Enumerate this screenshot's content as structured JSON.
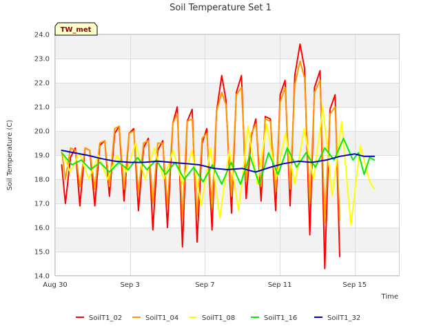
{
  "chart_data": {
    "type": "line",
    "title": "Soil Temperature Set 1",
    "xlabel": "Time",
    "ylabel": "Soil Temperature (C)",
    "badge": "TW_met",
    "x_start": "Aug 30",
    "x_unit": "days",
    "xlim": [
      0,
      18.4
    ],
    "ylim": [
      14.0,
      24.0
    ],
    "yticks": [
      "14.0",
      "15.0",
      "16.0",
      "17.0",
      "18.0",
      "19.0",
      "20.0",
      "21.0",
      "22.0",
      "23.0",
      "24.0"
    ],
    "xticks": [
      {
        "label": "Aug 30",
        "value": 0
      },
      {
        "label": "Sep 3",
        "value": 4
      },
      {
        "label": "Sep 7",
        "value": 8
      },
      {
        "label": "Sep 11",
        "value": 12
      },
      {
        "label": "Sep 15",
        "value": 16
      }
    ],
    "grid": true,
    "legend_position": "bottom",
    "series": [
      {
        "name": "SoilT1_02",
        "color": "#ff0000",
        "x": [
          0.35,
          0.55,
          0.82,
          1.08,
          1.32,
          1.6,
          1.85,
          2.12,
          2.38,
          2.65,
          2.9,
          3.18,
          3.42,
          3.68,
          3.95,
          4.2,
          4.45,
          4.72,
          4.98,
          5.22,
          5.48,
          5.75,
          6.0,
          6.28,
          6.52,
          6.8,
          7.05,
          7.32,
          7.58,
          7.85,
          8.1,
          8.38,
          8.62,
          8.9,
          9.12,
          9.42,
          9.68,
          9.95,
          10.2,
          10.48,
          10.72,
          11.0,
          11.22,
          11.5,
          11.78,
          12.02,
          12.28,
          12.55,
          12.8,
          13.08,
          13.32,
          13.6,
          13.85,
          14.15,
          14.4,
          14.68,
          14.95,
          15.2,
          15.45,
          15.72,
          16.0,
          16.28,
          16.52,
          16.8,
          17.05
        ],
        "y": [
          18.6,
          17.0,
          18.9,
          19.3,
          16.9,
          19.3,
          19.2,
          16.9,
          19.4,
          19.6,
          17.3,
          19.9,
          20.2,
          17.1,
          19.9,
          20.1,
          16.7,
          19.3,
          19.7,
          15.9,
          19.2,
          19.6,
          16.0,
          20.3,
          21.0,
          15.2,
          20.4,
          20.9,
          15.4,
          19.5,
          20.1,
          15.9,
          20.8,
          22.3,
          21.3,
          16.6,
          21.6,
          22.3,
          17.2,
          19.8,
          20.5,
          17.1,
          20.6,
          20.5,
          16.7,
          21.5,
          22.1,
          16.9,
          22.3,
          23.6,
          22.6,
          15.7,
          21.8,
          22.5,
          14.3,
          20.9,
          21.5,
          14.8,
          null,
          null,
          null,
          null,
          null,
          null,
          null
        ]
      },
      {
        "name": "SoilT1_04",
        "color": "#ff9900",
        "x": [
          0.35,
          0.55,
          0.82,
          1.08,
          1.32,
          1.6,
          1.85,
          2.12,
          2.38,
          2.65,
          2.9,
          3.18,
          3.42,
          3.68,
          3.95,
          4.2,
          4.45,
          4.72,
          4.98,
          5.22,
          5.48,
          5.75,
          6.0,
          6.28,
          6.52,
          6.8,
          7.05,
          7.32,
          7.58,
          7.85,
          8.1,
          8.38,
          8.62,
          8.9,
          9.12,
          9.42,
          9.68,
          9.95,
          10.2,
          10.48,
          10.72,
          11.0,
          11.22,
          11.5,
          11.78,
          12.02,
          12.28,
          12.55,
          12.8,
          13.08,
          13.32,
          13.6,
          13.85,
          14.15,
          14.4,
          14.68,
          14.95,
          15.2,
          15.45,
          15.72,
          16.0,
          16.28,
          16.52,
          16.8,
          17.05
        ],
        "y": [
          19.2,
          18.0,
          19.3,
          19.2,
          17.7,
          19.3,
          19.2,
          17.6,
          19.5,
          19.6,
          17.7,
          20.1,
          20.2,
          17.6,
          19.9,
          20.0,
          17.4,
          19.5,
          19.6,
          17.0,
          19.5,
          19.5,
          16.9,
          20.3,
          20.7,
          16.4,
          20.4,
          20.5,
          16.5,
          19.7,
          19.9,
          16.8,
          20.8,
          21.6,
          21.1,
          17.3,
          21.5,
          21.8,
          17.9,
          19.9,
          20.3,
          17.7,
          20.5,
          20.4,
          17.5,
          21.2,
          21.8,
          17.6,
          21.9,
          22.9,
          22.2,
          17.0,
          21.6,
          22.1,
          16.2,
          20.7,
          21.0,
          16.3,
          null,
          null,
          null,
          null,
          null,
          null,
          null
        ]
      },
      {
        "name": "SoilT1_08",
        "color": "#ffff00",
        "x": [
          0.35,
          0.8,
          1.3,
          1.8,
          2.3,
          2.8,
          3.3,
          3.8,
          4.3,
          4.8,
          5.3,
          5.8,
          6.3,
          6.8,
          7.3,
          7.8,
          8.3,
          8.8,
          9.3,
          9.8,
          10.3,
          10.8,
          11.3,
          11.8,
          12.3,
          12.8,
          13.3,
          13.8,
          14.3,
          14.8,
          15.3,
          15.8,
          16.3,
          16.8,
          17.05
        ],
        "y": [
          19.2,
          18.3,
          19.1,
          18.0,
          19.0,
          18.0,
          19.0,
          18.3,
          19.5,
          18.0,
          19.3,
          18.0,
          19.2,
          17.8,
          19.2,
          16.9,
          19.3,
          16.4,
          19.2,
          16.7,
          20.2,
          17.8,
          20.3,
          18.0,
          19.9,
          17.8,
          20.1,
          18.0,
          21.0,
          17.3,
          20.4,
          16.1,
          19.4,
          17.9,
          17.6
        ]
      },
      {
        "name": "SoilT1_16",
        "color": "#00ee00",
        "x": [
          0.35,
          0.9,
          1.4,
          1.9,
          2.4,
          2.9,
          3.4,
          3.9,
          4.4,
          4.9,
          5.4,
          5.9,
          6.4,
          6.9,
          7.4,
          7.9,
          8.4,
          8.9,
          9.4,
          9.9,
          10.4,
          10.9,
          11.4,
          11.9,
          12.4,
          12.9,
          13.4,
          13.9,
          14.4,
          14.9,
          15.4,
          15.9,
          16.2,
          16.5,
          16.8,
          17.05
        ],
        "y": [
          19.1,
          18.6,
          18.8,
          18.4,
          18.7,
          18.3,
          18.7,
          18.4,
          18.9,
          18.4,
          18.8,
          18.2,
          18.7,
          18.0,
          18.5,
          17.9,
          18.6,
          17.8,
          18.7,
          17.8,
          19.0,
          17.8,
          19.1,
          18.2,
          19.3,
          18.5,
          19.1,
          18.5,
          19.3,
          18.8,
          19.7,
          18.8,
          19.1,
          18.2,
          18.9,
          18.8
        ]
      },
      {
        "name": "SoilT1_32",
        "color": "#0000cc",
        "x": [
          0.35,
          1.0,
          1.7,
          2.5,
          3.2,
          4.0,
          4.7,
          5.5,
          6.2,
          7.0,
          7.7,
          8.5,
          9.2,
          10.0,
          10.7,
          11.5,
          12.2,
          13.0,
          13.7,
          14.5,
          15.2,
          16.0,
          16.5,
          17.05
        ],
        "y": [
          19.2,
          19.1,
          19.0,
          18.85,
          18.75,
          18.7,
          18.7,
          18.75,
          18.7,
          18.65,
          18.6,
          18.45,
          18.4,
          18.45,
          18.3,
          18.5,
          18.65,
          18.75,
          18.7,
          18.8,
          18.95,
          19.05,
          18.95,
          18.95
        ]
      }
    ]
  }
}
